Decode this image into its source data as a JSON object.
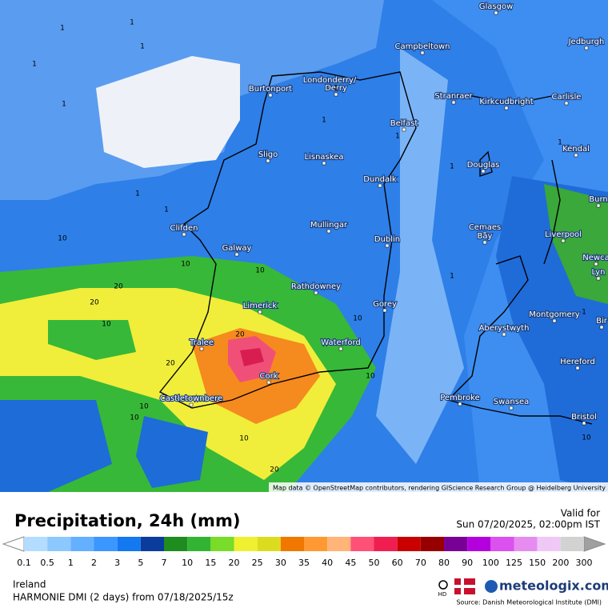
{
  "header": {
    "title": "Precipitation, 24h (mm)",
    "valid_label": "Valid for",
    "valid_time": "Sun 07/20/2025, 02:00pm IST"
  },
  "map": {
    "attribution": "Map data © OpenStreetMap contributors, rendering GIScience Research Group @ Heidelberg University",
    "places": [
      "Glasgow",
      "Campbeltown",
      "Jedburgh",
      "Burtonport",
      "Londonderry/",
      "Derry",
      "Stranraer",
      "Kirkcudbright",
      "Carlisle",
      "Belfast",
      "Kendal",
      "Sligo",
      "Lisnaskea",
      "Douglas",
      "Dundalk",
      "Burn",
      "Clifden",
      "Mullingar",
      "Cemaes",
      "Bay",
      "Liverpool",
      "Galway",
      "Dublin",
      "Newca",
      "Lyn",
      "Rathdowney",
      "Limerick",
      "Gorey",
      "Montgomery",
      "Bir",
      "Aberystwyth",
      "Tralee",
      "Waterford",
      "Hereford",
      "Cork",
      "Pembroke",
      "Swansea",
      "Castletownbere",
      "Bristol"
    ],
    "contour_labels": [
      "1",
      "1",
      "1",
      "1",
      "1",
      "1",
      "1",
      "1",
      "1",
      "1",
      "1",
      "1",
      "1",
      "1",
      "10",
      "10",
      "10",
      "20",
      "20",
      "10",
      "20",
      "20",
      "10",
      "10",
      "10",
      "20",
      "10",
      "10",
      "10"
    ]
  },
  "legend": {
    "values": [
      "0.1",
      "0.5",
      "1",
      "2",
      "3",
      "5",
      "7",
      "10",
      "15",
      "20",
      "25",
      "30",
      "35",
      "40",
      "45",
      "50",
      "60",
      "70",
      "80",
      "90",
      "100",
      "125",
      "150",
      "200",
      "300"
    ]
  },
  "footer": {
    "region": "Ireland",
    "model": "HARMONIE DMI (2 days)  from  07/18/2025/15z",
    "hd": "HD",
    "brand": "meteologix.com",
    "source": "Source: Danish Meteorological Institute (DMI)"
  }
}
